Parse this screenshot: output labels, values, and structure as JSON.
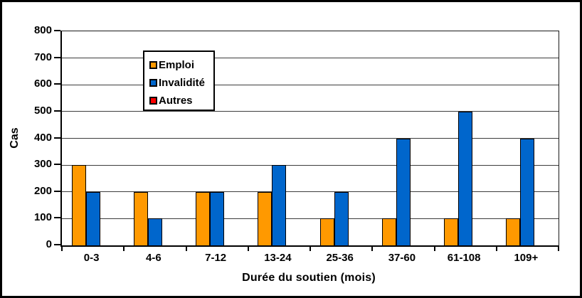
{
  "chart_data": {
    "type": "bar",
    "title": "",
    "categories": [
      "0-3",
      "4-6",
      "7-12",
      "13-24",
      "25-36",
      "37-60",
      "61-108",
      "109+"
    ],
    "series": [
      {
        "name": "Emploi",
        "color": "#FF9900",
        "values": [
          300,
          200,
          200,
          200,
          100,
          100,
          100,
          100
        ]
      },
      {
        "name": "Invalidité",
        "color": "#0066CC",
        "values": [
          200,
          100,
          200,
          300,
          200,
          400,
          500,
          400
        ]
      },
      {
        "name": "Autres",
        "color": "#FF0000",
        "values": [
          0,
          0,
          0,
          0,
          0,
          0,
          0,
          0
        ]
      }
    ],
    "xlabel": "Durée du soutien (mois)",
    "ylabel": "Cas",
    "ylim": [
      0,
      800
    ],
    "yticks": [
      0,
      100,
      200,
      300,
      400,
      500,
      600,
      700,
      800
    ],
    "grid": true,
    "legend_position": "inside-top-left",
    "bar_border_color": "#000000",
    "gridline_color": "#3c3c3c",
    "background_color": "#FFFFFF"
  }
}
